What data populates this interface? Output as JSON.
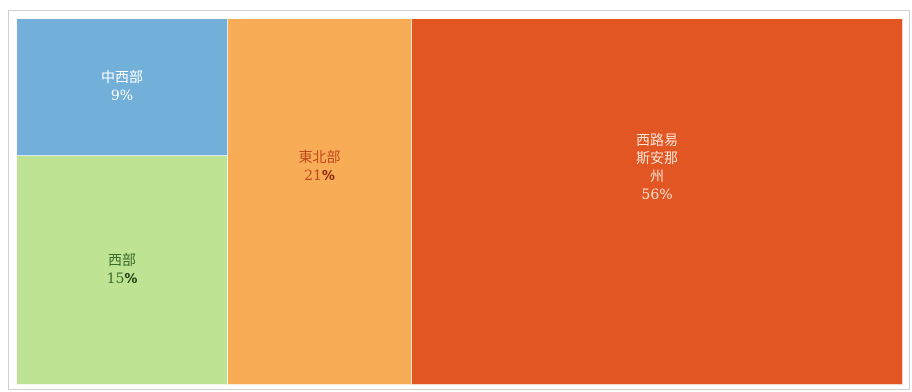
{
  "chart_data": {
    "type": "treemap",
    "title": "",
    "items": [
      {
        "key": "midwest",
        "label": "中西部",
        "value": 9,
        "value_label": "9%",
        "percent_bold": false,
        "color": "#72b0d9",
        "text_color": "#ffffff",
        "value_color": "#ffffff"
      },
      {
        "key": "west",
        "label": "西部",
        "value": 15,
        "value_label": "15%",
        "percent_bold": true,
        "color": "#bde393",
        "text_color": "#3d6b2a",
        "value_color": "#1f3a14"
      },
      {
        "key": "northeast",
        "label": "東北部",
        "value": 21,
        "value_label": "21%",
        "percent_bold": true,
        "color": "#f8ac55",
        "text_color": "#c0471e",
        "value_color": "#8a2a08"
      },
      {
        "key": "southwest",
        "label": "西路易\n斯安那\n州",
        "value": 56,
        "value_label": "56%",
        "percent_bold": false,
        "color": "#e15623",
        "text_color": "#fde3d4",
        "value_color": "#fde3d4"
      }
    ]
  }
}
